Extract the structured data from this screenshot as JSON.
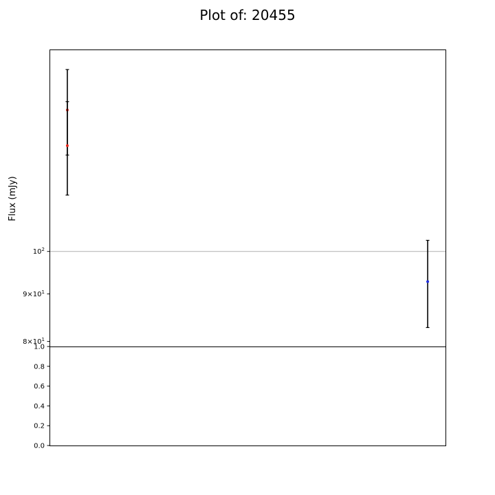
{
  "chart_data": [
    {
      "type": "scatter",
      "title": "Plot of: 20455",
      "xlabel": "",
      "ylabel": "Flux (mJy)",
      "yscale": "log",
      "ylim": [
        79,
        165
      ],
      "xlim": [
        0,
        1
      ],
      "grid": "horizontal major only",
      "y_tick_labels": [
        {
          "value": 100,
          "base": "10",
          "exp": "2"
        },
        {
          "value": 90,
          "base": "9×10",
          "exp": "1"
        },
        {
          "value": 80,
          "base": "8×10",
          "exp": "1"
        }
      ],
      "series": [
        {
          "color": "#e8251b",
          "points": [
            {
              "x": 0.045,
              "y": 142,
              "err": 15
            },
            {
              "x": 0.045,
              "y": 130,
              "err": 15
            }
          ]
        },
        {
          "color": "#1f2de0",
          "points": [
            {
              "x": 0.955,
              "y": 92.8,
              "err": 10
            }
          ]
        }
      ]
    },
    {
      "type": "line",
      "title": "",
      "xlabel": "",
      "ylabel": "",
      "ylim": [
        0,
        1
      ],
      "y_ticks": [
        "0.0",
        "0.2",
        "0.4",
        "0.6",
        "0.8",
        "1.0"
      ],
      "series": []
    }
  ]
}
